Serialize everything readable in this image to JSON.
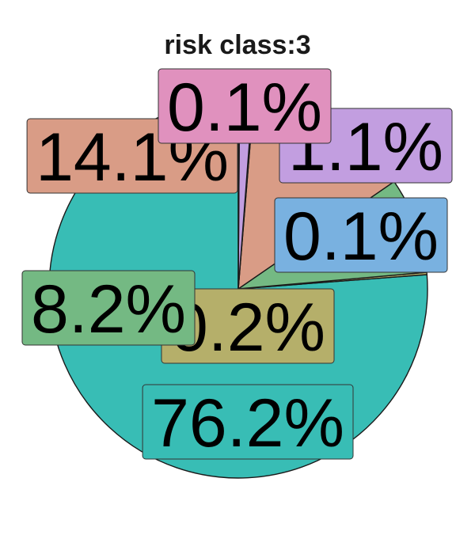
{
  "chart_data": {
    "type": "pie",
    "title": "risk class:3",
    "slices": [
      {
        "label": "76.2%",
        "value": 76.2,
        "color": "#38bdb5"
      },
      {
        "label": "0.2%",
        "value": 0.2,
        "color": "#b5af6a"
      },
      {
        "label": "8.2%",
        "value": 8.2,
        "color": "#74b983"
      },
      {
        "label": "14.1%",
        "value": 14.1,
        "color": "#d99c86"
      },
      {
        "label": "0.1%",
        "value": 0.1,
        "color": "#e091be"
      },
      {
        "label": "1.1%",
        "value": 1.1,
        "color": "#c29ee0"
      },
      {
        "label": "0.1%",
        "value": 0.1,
        "color": "#79b1e0"
      }
    ],
    "legend": "none"
  }
}
